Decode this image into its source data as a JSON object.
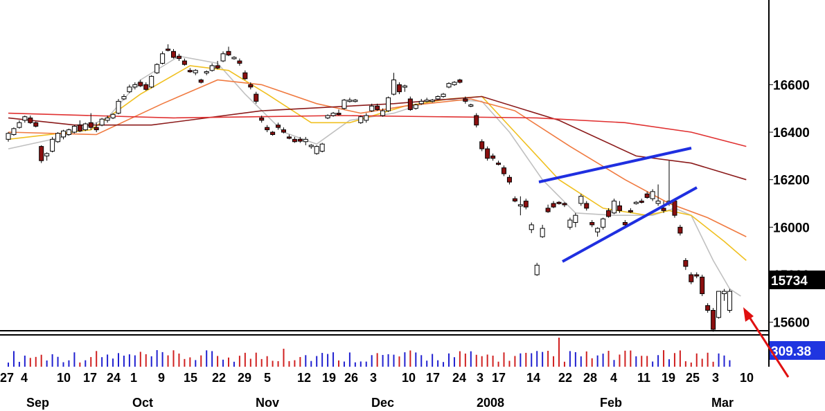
{
  "chart_data": {
    "type": "candlestick",
    "price_axis": {
      "ticks": [
        15600,
        15800,
        16000,
        16200,
        16400,
        16600
      ],
      "tick_labels": [
        "15600",
        "15800",
        "16000",
        "16200",
        "16400",
        "16600"
      ],
      "ylim": [
        15540,
        16760
      ]
    },
    "last_price_label": "15734",
    "volume_label": "309.38",
    "x_axis": {
      "day_labels": [
        "27",
        "4",
        "10",
        "17",
        "24",
        "1",
        "9",
        "15",
        "22",
        "29",
        "5",
        "12",
        "19",
        "26",
        "3",
        "10",
        "17",
        "24",
        "3",
        "17",
        "14",
        "22",
        "28",
        "4",
        "11",
        "19",
        "25",
        "3",
        "10"
      ],
      "month_labels": [
        "Sep",
        "Oct",
        "Nov",
        "Dec",
        "2008",
        "Feb",
        "Mar"
      ]
    },
    "candles": [
      {
        "o": 16370,
        "h": 16400,
        "l": 16360,
        "c": 16395
      },
      {
        "o": 16390,
        "h": 16420,
        "l": 16385,
        "c": 16415
      },
      {
        "o": 16420,
        "h": 16450,
        "l": 16415,
        "c": 16440
      },
      {
        "o": 16450,
        "h": 16470,
        "l": 16440,
        "c": 16465
      },
      {
        "o": 16460,
        "h": 16470,
        "l": 16435,
        "c": 16440
      },
      {
        "o": 16440,
        "h": 16445,
        "l": 16420,
        "c": 16425
      },
      {
        "o": 16340,
        "h": 16345,
        "l": 16270,
        "c": 16280
      },
      {
        "o": 16300,
        "h": 16315,
        "l": 16280,
        "c": 16310
      },
      {
        "o": 16320,
        "h": 16380,
        "l": 16315,
        "c": 16370
      },
      {
        "o": 16360,
        "h": 16400,
        "l": 16355,
        "c": 16395
      },
      {
        "o": 16380,
        "h": 16410,
        "l": 16370,
        "c": 16405
      },
      {
        "o": 16390,
        "h": 16415,
        "l": 16385,
        "c": 16410
      },
      {
        "o": 16400,
        "h": 16430,
        "l": 16395,
        "c": 16425
      },
      {
        "o": 16430,
        "h": 16450,
        "l": 16400,
        "c": 16405
      },
      {
        "o": 16410,
        "h": 16440,
        "l": 16405,
        "c": 16435
      },
      {
        "o": 16440,
        "h": 16480,
        "l": 16410,
        "c": 16420
      },
      {
        "o": 16420,
        "h": 16440,
        "l": 16400,
        "c": 16410
      },
      {
        "o": 16430,
        "h": 16460,
        "l": 16425,
        "c": 16455
      },
      {
        "o": 16450,
        "h": 16470,
        "l": 16440,
        "c": 16460
      },
      {
        "o": 16460,
        "h": 16480,
        "l": 16455,
        "c": 16475
      },
      {
        "o": 16480,
        "h": 16540,
        "l": 16475,
        "c": 16530
      },
      {
        "o": 16540,
        "h": 16560,
        "l": 16535,
        "c": 16550
      },
      {
        "o": 16570,
        "h": 16600,
        "l": 16565,
        "c": 16590
      },
      {
        "o": 16590,
        "h": 16610,
        "l": 16580,
        "c": 16600
      },
      {
        "o": 16610,
        "h": 16620,
        "l": 16590,
        "c": 16595
      },
      {
        "o": 16600,
        "h": 16610,
        "l": 16575,
        "c": 16580
      },
      {
        "o": 16590,
        "h": 16640,
        "l": 16585,
        "c": 16635
      },
      {
        "o": 16650,
        "h": 16690,
        "l": 16645,
        "c": 16685
      },
      {
        "o": 16690,
        "h": 16740,
        "l": 16685,
        "c": 16730
      },
      {
        "o": 16750,
        "h": 16770,
        "l": 16740,
        "c": 16745
      },
      {
        "o": 16740,
        "h": 16750,
        "l": 16710,
        "c": 16715
      },
      {
        "o": 16720,
        "h": 16730,
        "l": 16700,
        "c": 16710
      },
      {
        "o": 16700,
        "h": 16710,
        "l": 16680,
        "c": 16685
      },
      {
        "o": 16660,
        "h": 16670,
        "l": 16650,
        "c": 16655
      },
      {
        "o": 16650,
        "h": 16665,
        "l": 16640,
        "c": 16660
      },
      {
        "o": 16620,
        "h": 16625,
        "l": 16605,
        "c": 16610
      },
      {
        "o": 16650,
        "h": 16660,
        "l": 16640,
        "c": 16655
      },
      {
        "o": 16660,
        "h": 16690,
        "l": 16655,
        "c": 16680
      },
      {
        "o": 16680,
        "h": 16700,
        "l": 16665,
        "c": 16670
      },
      {
        "o": 16700,
        "h": 16740,
        "l": 16695,
        "c": 16730
      },
      {
        "o": 16740,
        "h": 16760,
        "l": 16720,
        "c": 16725
      },
      {
        "o": 16710,
        "h": 16720,
        "l": 16705,
        "c": 16715
      },
      {
        "o": 16700,
        "h": 16710,
        "l": 16680,
        "c": 16690
      },
      {
        "o": 16650,
        "h": 16660,
        "l": 16620,
        "c": 16625
      },
      {
        "o": 16600,
        "h": 16610,
        "l": 16580,
        "c": 16590
      },
      {
        "o": 16560,
        "h": 16570,
        "l": 16520,
        "c": 16530
      },
      {
        "o": 16460,
        "h": 16470,
        "l": 16440,
        "c": 16450
      },
      {
        "o": 16420,
        "h": 16430,
        "l": 16400,
        "c": 16410
      },
      {
        "o": 16400,
        "h": 16405,
        "l": 16385,
        "c": 16390
      },
      {
        "o": 16430,
        "h": 16440,
        "l": 16410,
        "c": 16420
      },
      {
        "o": 16410,
        "h": 16420,
        "l": 16395,
        "c": 16400
      },
      {
        "o": 16380,
        "h": 16390,
        "l": 16370,
        "c": 16375
      },
      {
        "o": 16370,
        "h": 16380,
        "l": 16355,
        "c": 16360
      },
      {
        "o": 16370,
        "h": 16380,
        "l": 16355,
        "c": 16362
      },
      {
        "o": 16360,
        "h": 16380,
        "l": 16345,
        "c": 16370
      },
      {
        "o": 16340,
        "h": 16350,
        "l": 16330,
        "c": 16345
      },
      {
        "o": 16310,
        "h": 16345,
        "l": 16305,
        "c": 16340
      },
      {
        "o": 16320,
        "h": 16355,
        "l": 16315,
        "c": 16350
      },
      {
        "o": 16460,
        "h": 16475,
        "l": 16455,
        "c": 16470
      },
      {
        "o": 16470,
        "h": 16485,
        "l": 16465,
        "c": 16480
      },
      {
        "o": 16480,
        "h": 16495,
        "l": 16470,
        "c": 16475
      },
      {
        "o": 16500,
        "h": 16540,
        "l": 16495,
        "c": 16535
      },
      {
        "o": 16530,
        "h": 16545,
        "l": 16525,
        "c": 16535
      },
      {
        "o": 16530,
        "h": 16540,
        "l": 16525,
        "c": 16535
      },
      {
        "o": 16440,
        "h": 16470,
        "l": 16435,
        "c": 16465
      },
      {
        "o": 16450,
        "h": 16480,
        "l": 16440,
        "c": 16470
      },
      {
        "o": 16490,
        "h": 16520,
        "l": 16485,
        "c": 16510
      },
      {
        "o": 16510,
        "h": 16520,
        "l": 16490,
        "c": 16495
      },
      {
        "o": 16470,
        "h": 16500,
        "l": 16465,
        "c": 16490
      },
      {
        "o": 16490,
        "h": 16550,
        "l": 16485,
        "c": 16545
      },
      {
        "o": 16560,
        "h": 16650,
        "l": 16555,
        "c": 16620
      },
      {
        "o": 16600,
        "h": 16610,
        "l": 16560,
        "c": 16570
      },
      {
        "o": 16590,
        "h": 16600,
        "l": 16570,
        "c": 16595
      },
      {
        "o": 16540,
        "h": 16550,
        "l": 16490,
        "c": 16495
      },
      {
        "o": 16500,
        "h": 16520,
        "l": 16495,
        "c": 16515
      },
      {
        "o": 16520,
        "h": 16540,
        "l": 16515,
        "c": 16530
      },
      {
        "o": 16530,
        "h": 16545,
        "l": 16525,
        "c": 16535
      },
      {
        "o": 16530,
        "h": 16540,
        "l": 16525,
        "c": 16535
      },
      {
        "o": 16540,
        "h": 16555,
        "l": 16535,
        "c": 16550
      },
      {
        "o": 16550,
        "h": 16565,
        "l": 16545,
        "c": 16560
      },
      {
        "o": 16590,
        "h": 16610,
        "l": 16585,
        "c": 16605
      },
      {
        "o": 16600,
        "h": 16615,
        "l": 16595,
        "c": 16610
      },
      {
        "o": 16620,
        "h": 16625,
        "l": 16605,
        "c": 16610
      },
      {
        "o": 16540,
        "h": 16550,
        "l": 16520,
        "c": 16530
      },
      {
        "o": 16510,
        "h": 16520,
        "l": 16505,
        "c": 16515
      },
      {
        "o": 16470,
        "h": 16480,
        "l": 16420,
        "c": 16430
      },
      {
        "o": 16360,
        "h": 16370,
        "l": 16320,
        "c": 16330
      },
      {
        "o": 16330,
        "h": 16340,
        "l": 16280,
        "c": 16290
      },
      {
        "o": 16300,
        "h": 16310,
        "l": 16280,
        "c": 16290
      },
      {
        "o": 16270,
        "h": 16280,
        "l": 16260,
        "c": 16265
      },
      {
        "o": 16250,
        "h": 16260,
        "l": 16215,
        "c": 16225
      },
      {
        "o": 16210,
        "h": 16220,
        "l": 16180,
        "c": 16190
      },
      {
        "o": 16120,
        "h": 16130,
        "l": 16105,
        "c": 16110
      },
      {
        "o": 16090,
        "h": 16130,
        "l": 16050,
        "c": 16095
      },
      {
        "o": 16110,
        "h": 16120,
        "l": 16075,
        "c": 16085
      },
      {
        "o": 15990,
        "h": 16020,
        "l": 15975,
        "c": 16010
      },
      {
        "o": 15800,
        "h": 15850,
        "l": 15795,
        "c": 15840
      },
      {
        "o": 15960,
        "h": 16010,
        "l": 15955,
        "c": 15995
      },
      {
        "o": 16080,
        "h": 16095,
        "l": 16060,
        "c": 16065
      },
      {
        "o": 16100,
        "h": 16110,
        "l": 16080,
        "c": 16085
      },
      {
        "o": 16105,
        "h": 16110,
        "l": 16095,
        "c": 16100
      },
      {
        "o": 16100,
        "h": 16105,
        "l": 16085,
        "c": 16095
      },
      {
        "o": 16000,
        "h": 16040,
        "l": 15990,
        "c": 16030
      },
      {
        "o": 16020,
        "h": 16060,
        "l": 16000,
        "c": 16050
      },
      {
        "o": 16100,
        "h": 16140,
        "l": 16090,
        "c": 16130
      },
      {
        "o": 16100,
        "h": 16110,
        "l": 16070,
        "c": 16080
      },
      {
        "o": 16020,
        "h": 16030,
        "l": 16000,
        "c": 16010
      },
      {
        "o": 15980,
        "h": 16000,
        "l": 15960,
        "c": 15995
      },
      {
        "o": 16000,
        "h": 16040,
        "l": 15990,
        "c": 16035
      },
      {
        "o": 16070,
        "h": 16080,
        "l": 16040,
        "c": 16045
      },
      {
        "o": 16060,
        "h": 16120,
        "l": 16055,
        "c": 16110
      },
      {
        "o": 16090,
        "h": 16110,
        "l": 16060,
        "c": 16070
      },
      {
        "o": 16020,
        "h": 16030,
        "l": 16000,
        "c": 16010
      },
      {
        "o": 16070,
        "h": 16080,
        "l": 16060,
        "c": 16065
      },
      {
        "o": 16100,
        "h": 16110,
        "l": 16095,
        "c": 16105
      },
      {
        "o": 16110,
        "h": 16120,
        "l": 16100,
        "c": 16105
      },
      {
        "o": 16140,
        "h": 16150,
        "l": 16120,
        "c": 16125
      },
      {
        "o": 16120,
        "h": 16160,
        "l": 16110,
        "c": 16150
      },
      {
        "o": 16100,
        "h": 16180,
        "l": 16090,
        "c": 16110
      },
      {
        "o": 16080,
        "h": 16110,
        "l": 16060,
        "c": 16070
      },
      {
        "o": 16100,
        "h": 16280,
        "l": 16090,
        "c": 16110
      },
      {
        "o": 16110,
        "h": 16120,
        "l": 16040,
        "c": 16050
      },
      {
        "o": 16000,
        "h": 16010,
        "l": 15965,
        "c": 15975
      },
      {
        "o": 15860,
        "h": 15870,
        "l": 15820,
        "c": 15835
      },
      {
        "o": 15800,
        "h": 15810,
        "l": 15760,
        "c": 15770
      },
      {
        "o": 15800,
        "h": 15810,
        "l": 15785,
        "c": 15795
      },
      {
        "o": 15790,
        "h": 15800,
        "l": 15710,
        "c": 15720
      },
      {
        "o": 15670,
        "h": 15680,
        "l": 15640,
        "c": 15650
      },
      {
        "o": 15650,
        "h": 15660,
        "l": 15560,
        "c": 15570
      },
      {
        "o": 15620,
        "h": 15730,
        "l": 15615,
        "c": 15730
      },
      {
        "o": 15720,
        "h": 15740,
        "l": 15690,
        "c": 15730
      },
      {
        "o": 15650,
        "h": 15740,
        "l": 15640,
        "c": 15730
      }
    ],
    "moving_averages": [
      {
        "color": "#c0c0c0",
        "values": [
          [
            0,
            16330
          ],
          [
            10,
            16380
          ],
          [
            18,
            16460
          ],
          [
            24,
            16620
          ],
          [
            31,
            16720
          ],
          [
            38,
            16690
          ],
          [
            43,
            16560
          ],
          [
            50,
            16400
          ],
          [
            56,
            16350
          ],
          [
            62,
            16450
          ],
          [
            70,
            16480
          ],
          [
            78,
            16540
          ],
          [
            86,
            16530
          ],
          [
            91,
            16400
          ],
          [
            97,
            16200
          ],
          [
            103,
            16060
          ],
          [
            110,
            16050
          ],
          [
            117,
            16050
          ],
          [
            121,
            16080
          ],
          [
            124,
            16050
          ],
          [
            128,
            15860
          ],
          [
            131,
            15740
          ],
          [
            133,
            15710
          ]
        ]
      },
      {
        "color": "#f0c020",
        "values": [
          [
            0,
            16370
          ],
          [
            15,
            16410
          ],
          [
            24,
            16560
          ],
          [
            33,
            16680
          ],
          [
            40,
            16660
          ],
          [
            47,
            16560
          ],
          [
            55,
            16440
          ],
          [
            62,
            16440
          ],
          [
            72,
            16510
          ],
          [
            80,
            16540
          ],
          [
            86,
            16550
          ],
          [
            92,
            16400
          ],
          [
            100,
            16200
          ],
          [
            108,
            16080
          ],
          [
            116,
            16050
          ],
          [
            120,
            16070
          ],
          [
            124,
            16050
          ],
          [
            130,
            15940
          ],
          [
            134,
            15860
          ]
        ]
      },
      {
        "color": "#f07a40",
        "values": [
          [
            0,
            16400
          ],
          [
            16,
            16390
          ],
          [
            28,
            16520
          ],
          [
            38,
            16620
          ],
          [
            46,
            16600
          ],
          [
            56,
            16520
          ],
          [
            64,
            16480
          ],
          [
            72,
            16510
          ],
          [
            84,
            16540
          ],
          [
            92,
            16490
          ],
          [
            102,
            16340
          ],
          [
            112,
            16200
          ],
          [
            120,
            16100
          ],
          [
            127,
            16040
          ],
          [
            134,
            15960
          ]
        ]
      },
      {
        "color": "#8b1a1a",
        "values": [
          [
            0,
            16460
          ],
          [
            12,
            16430
          ],
          [
            26,
            16430
          ],
          [
            46,
            16490
          ],
          [
            70,
            16520
          ],
          [
            86,
            16550
          ],
          [
            100,
            16450
          ],
          [
            114,
            16300
          ],
          [
            124,
            16270
          ],
          [
            134,
            16200
          ]
        ]
      },
      {
        "color": "#e03030",
        "values": [
          [
            0,
            16480
          ],
          [
            30,
            16460
          ],
          [
            60,
            16470
          ],
          [
            96,
            16460
          ],
          [
            112,
            16440
          ],
          [
            124,
            16400
          ],
          [
            134,
            16340
          ]
        ]
      }
    ],
    "volume_colors_hint": [
      "#2020d0",
      "#d02020"
    ]
  }
}
